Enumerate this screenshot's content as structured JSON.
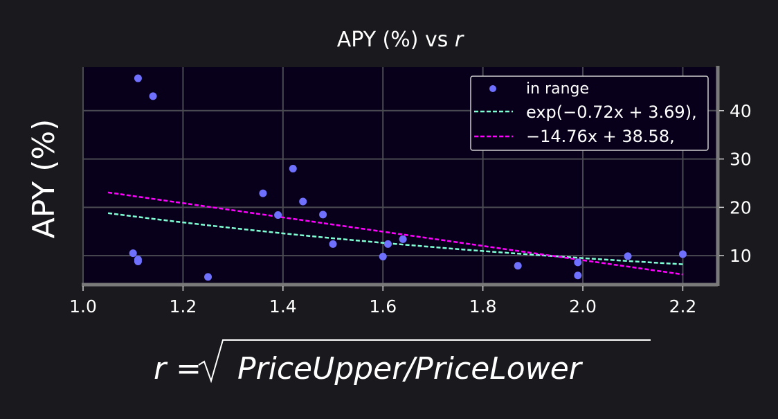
{
  "chart_data": {
    "type": "scatter",
    "title": "APY (%) vs ",
    "title_var": "r",
    "ylabel": "APY (%)",
    "xlabel_lhs": "r = ",
    "xlabel_rad": "PriceUpper/PriceLower",
    "xlim": [
      1.0,
      2.27
    ],
    "ylim": [
      4,
      49
    ],
    "xticks": [
      1.0,
      1.2,
      1.4,
      1.6,
      1.8,
      2.0,
      2.2
    ],
    "yticks": [
      10,
      20,
      30,
      40
    ],
    "grid": true,
    "legend_position": "top-right",
    "y_axis_side": "right",
    "colors": {
      "background": "#1a191e",
      "plot_bg": "#08001a",
      "grid": "#4a4a52",
      "spine": "#7a7a7a",
      "points": "#7070ff",
      "exp_fit": "#7fffd4",
      "linear_fit": "#ff00ff"
    },
    "series": [
      {
        "name": "in range",
        "type": "scatter",
        "x": [
          1.11,
          1.14,
          1.1,
          1.11,
          1.11,
          1.25,
          1.36,
          1.39,
          1.42,
          1.44,
          1.48,
          1.5,
          1.6,
          1.61,
          1.64,
          1.87,
          1.99,
          1.99,
          2.09,
          2.2
        ],
        "y": [
          46.7,
          43.0,
          10.5,
          9.2,
          8.8,
          5.6,
          22.9,
          18.4,
          28.0,
          21.2,
          18.5,
          12.4,
          9.8,
          12.4,
          13.4,
          7.9,
          8.6,
          5.9,
          9.9,
          10.3
        ]
      },
      {
        "name": "exp(−0.72x + 3.69),",
        "type": "line",
        "style": "dashed",
        "func": "exp",
        "a": -0.72,
        "b": 3.69,
        "x_range": [
          1.05,
          2.2
        ]
      },
      {
        "name": "−14.76x + 38.58,",
        "type": "line",
        "style": "dashed",
        "func": "linear",
        "a": -14.76,
        "b": 38.58,
        "x_range": [
          1.05,
          2.2
        ]
      }
    ]
  }
}
